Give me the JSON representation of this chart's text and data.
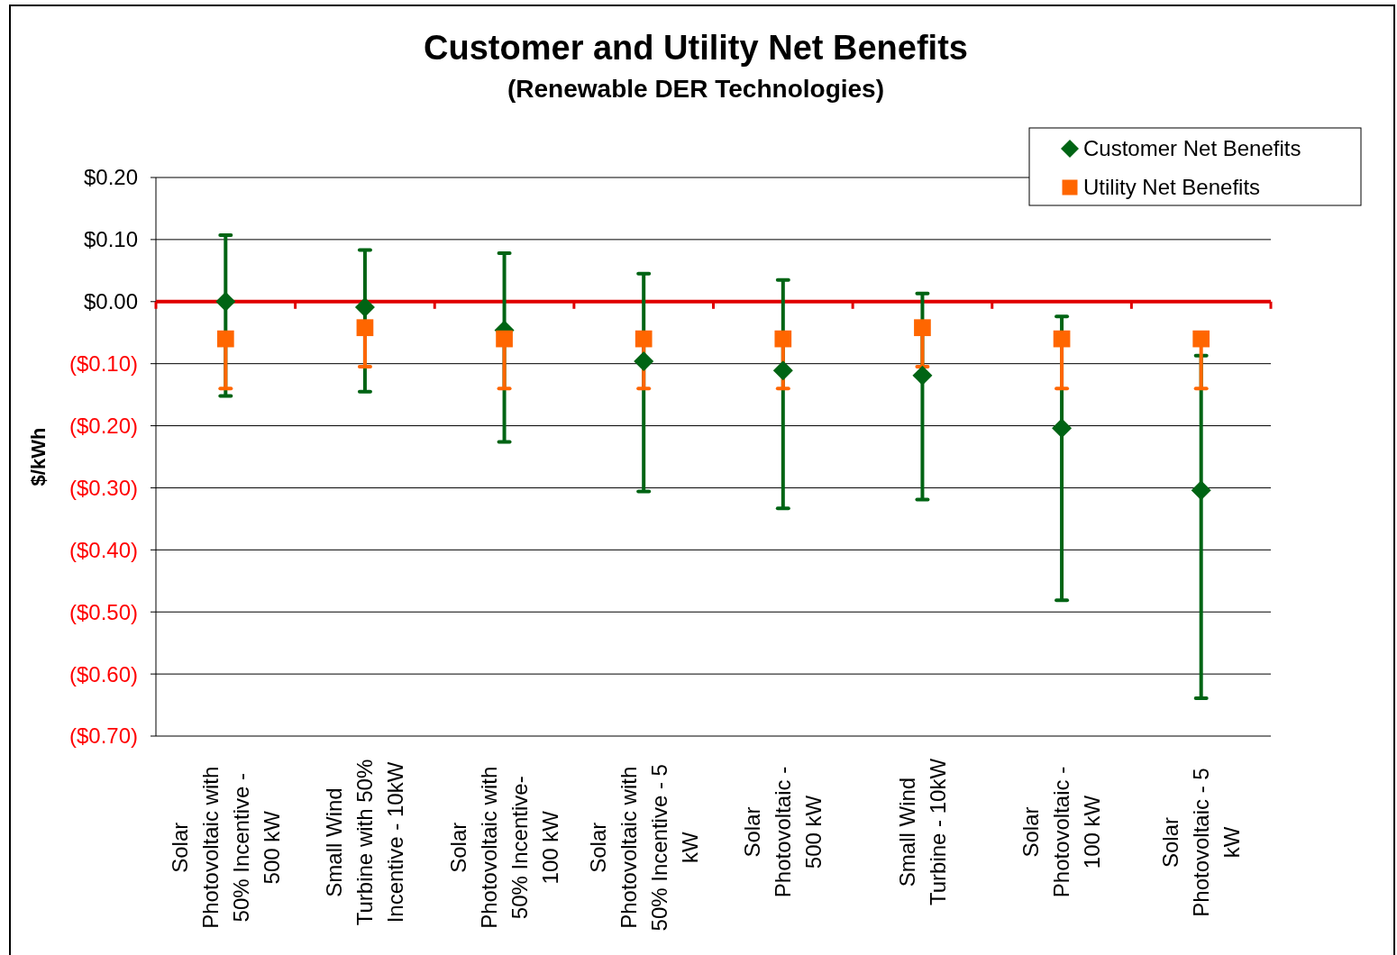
{
  "chart_data": {
    "type": "scatter",
    "title": "Customer and Utility Net Benefits",
    "subtitle": "(Renewable DER Technologies)",
    "ylabel": "$/kWh",
    "categories": [
      "Solar Photovoltaic with 50% Incentive - 500 kW",
      "Small Wind Turbine with 50% Incentive - 10kW",
      "Solar Photovoltaic with 50% Incentive- 100 kW",
      "Solar Photovoltaic with 50% Incentive - 5 kW",
      "Solar Photovoltaic - 500 kW",
      "Small Wind Turbine - 10kW",
      "Solar Photovoltaic - 100 kW",
      "Solar Photovoltaic - 5 kW"
    ],
    "series": [
      {
        "name": "Customer Net Benefits",
        "color": "#006414",
        "marker": "diamond",
        "values": [
          0.0,
          -0.009,
          -0.046,
          -0.096,
          -0.111,
          -0.119,
          -0.204,
          -0.304
        ],
        "errors": [
          [
            -0.152,
            0.107
          ],
          [
            -0.145,
            0.083
          ],
          [
            -0.226,
            0.078
          ],
          [
            -0.306,
            0.045
          ],
          [
            -0.333,
            0.035
          ],
          [
            -0.319,
            0.013
          ],
          [
            -0.481,
            -0.024
          ],
          [
            -0.639,
            -0.087
          ]
        ]
      },
      {
        "name": "Utility Net Benefits",
        "color": "#ff6600",
        "marker": "square",
        "values": [
          -0.06,
          -0.042,
          -0.06,
          -0.06,
          -0.06,
          -0.042,
          -0.06,
          -0.06
        ],
        "errors": [
          [
            -0.14,
            -0.06
          ],
          [
            -0.105,
            -0.042
          ],
          [
            -0.14,
            -0.06
          ],
          [
            -0.14,
            -0.06
          ],
          [
            -0.14,
            -0.06
          ],
          [
            -0.105,
            -0.042
          ],
          [
            -0.14,
            -0.06
          ],
          [
            -0.14,
            -0.06
          ]
        ]
      }
    ],
    "ylim": [
      -0.7,
      0.2
    ],
    "yticks": [
      {
        "value": 0.2,
        "label": "$0.20"
      },
      {
        "value": 0.1,
        "label": "$0.10"
      },
      {
        "value": 0,
        "label": "$0.00"
      },
      {
        "value": -0.1,
        "label": "($0.10)"
      },
      {
        "value": -0.2,
        "label": "($0.20)"
      },
      {
        "value": -0.3,
        "label": "($0.30)"
      },
      {
        "value": -0.4,
        "label": "($0.40)"
      },
      {
        "value": -0.5,
        "label": "($0.50)"
      },
      {
        "value": -0.6,
        "label": "($0.60)"
      },
      {
        "value": -0.7,
        "label": "($0.70)"
      }
    ],
    "ref_lines": [
      {
        "axis": "y",
        "value": 0,
        "color": "#e00000"
      }
    ],
    "grid": "y",
    "legend": "top right"
  }
}
